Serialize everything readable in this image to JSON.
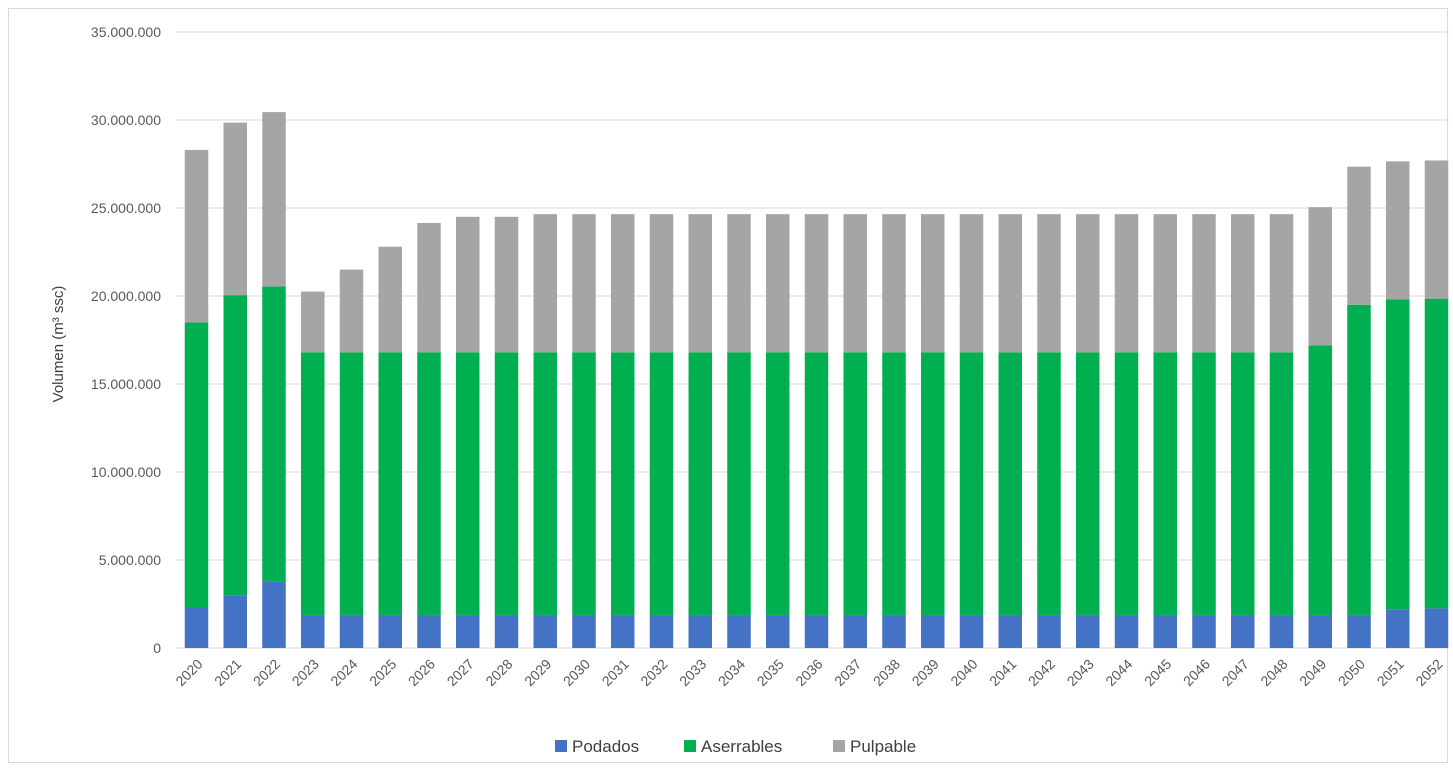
{
  "chart_data": {
    "type": "bar",
    "stacked": true,
    "title": "",
    "xlabel": "",
    "ylabel": "Volumen (m³ ssc)",
    "ylim": [
      0,
      35000000
    ],
    "y_ticks": [
      "0",
      "5.000.000",
      "10.000.000",
      "15.000.000",
      "20.000.000",
      "25.000.000",
      "30.000.000",
      "35.000.000"
    ],
    "grid": "horizontal",
    "legend_position": "bottom",
    "categories": [
      "2020",
      "2021",
      "2022",
      "2023",
      "2024",
      "2025",
      "2026",
      "2027",
      "2028",
      "2029",
      "2030",
      "2031",
      "2032",
      "2033",
      "2034",
      "2035",
      "2036",
      "2037",
      "2038",
      "2039",
      "2040",
      "2041",
      "2042",
      "2043",
      "2044",
      "2045",
      "2046",
      "2047",
      "2048",
      "2049",
      "2050",
      "2051",
      "2052"
    ],
    "series": [
      {
        "name": "Podados",
        "color": "#4472c4",
        "values": [
          2300000,
          3000000,
          3800000,
          1850000,
          1850000,
          1850000,
          1850000,
          1850000,
          1850000,
          1850000,
          1850000,
          1850000,
          1850000,
          1850000,
          1850000,
          1850000,
          1850000,
          1850000,
          1850000,
          1850000,
          1850000,
          1850000,
          1850000,
          1850000,
          1850000,
          1850000,
          1850000,
          1850000,
          1850000,
          1850000,
          1850000,
          2200000,
          2250000
        ]
      },
      {
        "name": "Aserrables",
        "color": "#00b050",
        "values": [
          16200000,
          17050000,
          16750000,
          14950000,
          14950000,
          14950000,
          14950000,
          14950000,
          14950000,
          14950000,
          14950000,
          14950000,
          14950000,
          14950000,
          14950000,
          14950000,
          14950000,
          14950000,
          14950000,
          14950000,
          14950000,
          14950000,
          14950000,
          14950000,
          14950000,
          14950000,
          14950000,
          14950000,
          14950000,
          15350000,
          17650000,
          17600000,
          17600000
        ]
      },
      {
        "name": "Pulpable",
        "color": "#a5a5a5",
        "values": [
          9800000,
          9800000,
          9900000,
          3450000,
          4700000,
          6000000,
          7350000,
          7700000,
          7700000,
          7850000,
          7850000,
          7850000,
          7850000,
          7850000,
          7850000,
          7850000,
          7850000,
          7850000,
          7850000,
          7850000,
          7850000,
          7850000,
          7850000,
          7850000,
          7850000,
          7850000,
          7850000,
          7850000,
          7850000,
          7850000,
          7850000,
          7850000,
          7850000
        ]
      }
    ]
  }
}
